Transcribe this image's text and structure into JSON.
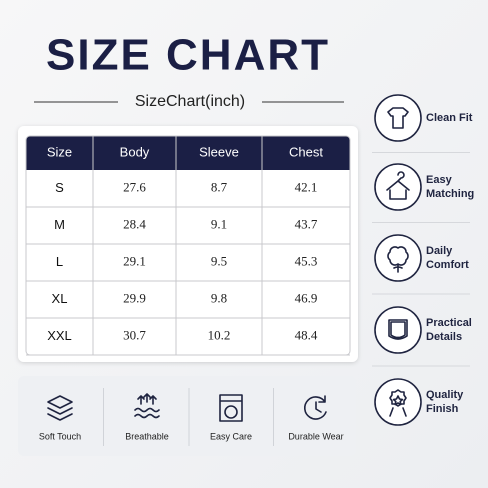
{
  "header": {
    "title": "SIZE CHART",
    "subtitle": "SizeChart(inch)"
  },
  "table": {
    "columns": [
      "Size",
      "Body",
      "Sleeve",
      "Chest"
    ],
    "rows": [
      [
        "S",
        "27.6",
        "8.7",
        "42.1"
      ],
      [
        "M",
        "28.4",
        "9.1",
        "43.7"
      ],
      [
        "L",
        "29.1",
        "9.5",
        "45.3"
      ],
      [
        "XL",
        "29.9",
        "9.8",
        "46.9"
      ],
      [
        "XXL",
        "30.7",
        "10.2",
        "48.4"
      ]
    ]
  },
  "side_features": [
    {
      "lines": [
        "Clean Fit"
      ]
    },
    {
      "lines": [
        "Easy",
        "Matching"
      ]
    },
    {
      "lines": [
        "Daily",
        "Comfort"
      ]
    },
    {
      "lines": [
        "Practical",
        "Details"
      ]
    },
    {
      "lines": [
        "Quality",
        "Finish"
      ]
    }
  ],
  "bottom_features": [
    "Soft Touch",
    "Breathable",
    "Easy Care",
    "Durable Wear"
  ]
}
